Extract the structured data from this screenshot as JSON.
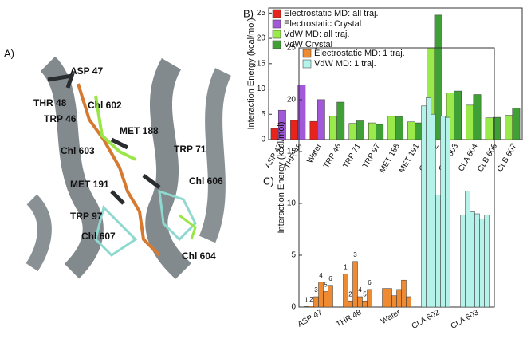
{
  "panel_a": {
    "label": "A)",
    "annotations": [
      "ASP 47",
      "THR 48",
      "TRP 46",
      "Chl 602",
      "MET 188",
      "Chl 603",
      "TRP 71",
      "MET 191",
      "Chl 606",
      "TRP 97",
      "Chl 607",
      "Chl 604"
    ]
  },
  "chart_data": [
    {
      "type": "bar",
      "panel_label": "B)",
      "y_label": "Interaction Energy (kcal/mol)",
      "categories": [
        "ASP 47",
        "THR 48",
        "Water",
        "TRP 46",
        "TRP 71",
        "TRP 97",
        "MET 188",
        "MET 191",
        "CLA 602",
        "CLA 603",
        "CLA 604",
        "CLB 606",
        "CLB 607"
      ],
      "series": [
        {
          "name": "Electrostatic MD: all traj.",
          "color": "#e8231c",
          "values": [
            2.2,
            3.8,
            3.6,
            null,
            null,
            null,
            null,
            null,
            null,
            null,
            null,
            null,
            null
          ]
        },
        {
          "name": "Electrostatic Crystal",
          "color": "#a259d9",
          "values": [
            5.8,
            10.8,
            7.9,
            null,
            null,
            null,
            null,
            null,
            null,
            null,
            null,
            null,
            null
          ]
        },
        {
          "name": "VdW MD: all traj.",
          "color": "#99ea4a",
          "values": [
            null,
            null,
            null,
            4.6,
            3.2,
            3.3,
            4.6,
            3.5,
            18.1,
            9.2,
            6.8,
            4.3,
            4.8
          ]
        },
        {
          "name": "VdW Crystal",
          "color": "#3fa135",
          "values": [
            null,
            null,
            null,
            7.4,
            3.7,
            3.0,
            4.5,
            3.3,
            24.6,
            9.6,
            8.9,
            4.4,
            6.2
          ]
        }
      ],
      "ylim": [
        0,
        26
      ],
      "yticks": [
        0,
        5,
        10,
        15,
        20,
        25
      ]
    },
    {
      "type": "grouped-bar",
      "panel_label": "C)",
      "y_label": "Interaction Energy (kcal/mol)",
      "series": [
        {
          "name": "Electrostatic MD: 1 traj.",
          "color": "#ee8a32"
        },
        {
          "name": "VdW MD: 1 traj.",
          "color": "#b4f2ea"
        }
      ],
      "groups": [
        {
          "label": "ASP 47",
          "series": 0,
          "values": [
            0.05,
            0.1,
            1.0,
            2.4,
            1.5,
            2.1
          ],
          "bar_labels": [
            1,
            2,
            3,
            4,
            5,
            6
          ]
        },
        {
          "label": "THR 48",
          "series": 0,
          "values": [
            3.2,
            0.6,
            4.4,
            1.0,
            0.6,
            1.7
          ],
          "bar_labels": [
            1,
            2,
            3,
            4,
            5,
            6
          ]
        },
        {
          "label": "Water",
          "series": 0,
          "values": [
            1.8,
            1.8,
            1.1,
            1.7,
            2.6,
            1.0
          ]
        },
        {
          "label": "CLA 602",
          "series": 1,
          "values": [
            19.4,
            20.2,
            18.6,
            10.8,
            18.4,
            18.3
          ]
        },
        {
          "label": "CLA 603",
          "series": 1,
          "values": [
            8.9,
            11.2,
            9.2,
            9.0,
            8.5,
            8.9
          ]
        }
      ],
      "ylim": [
        0,
        25
      ],
      "yticks": [
        0,
        5,
        10,
        15,
        20,
        25
      ]
    }
  ]
}
